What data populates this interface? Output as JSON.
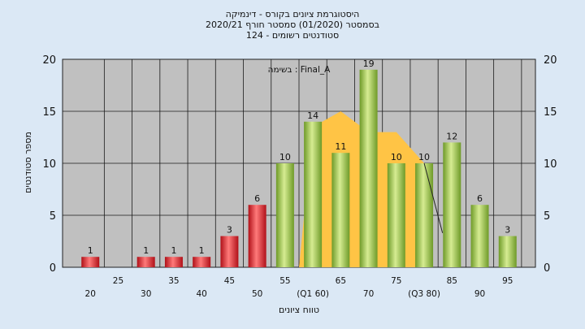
{
  "chart_data": {
    "type": "bar",
    "title_lines": [
      "היסטוגרמת ציונים בקורס - דינמיקה",
      "בסמסטר  (01/2020)  סמסטר חורף  2020/21",
      "סטודנטים רשומים - 124"
    ],
    "annotation": "בשימה : Final_A",
    "xlabel": "טווח ציונים",
    "ylabel": "מספר סטודנטים",
    "ylim": [
      0,
      20
    ],
    "yticks": [
      0,
      5,
      10,
      15,
      20
    ],
    "x_tick_labels": [
      {
        "x": 20,
        "label": "20",
        "row": 2
      },
      {
        "x": 25,
        "label": "25",
        "row": 1
      },
      {
        "x": 30,
        "label": "30",
        "row": 2
      },
      {
        "x": 35,
        "label": "35",
        "row": 1
      },
      {
        "x": 40,
        "label": "40",
        "row": 2
      },
      {
        "x": 45,
        "label": "45",
        "row": 1
      },
      {
        "x": 50,
        "label": "50",
        "row": 2
      },
      {
        "x": 55,
        "label": "55",
        "row": 1
      },
      {
        "x": 60,
        "label": "(Q1 60)",
        "row": 2
      },
      {
        "x": 65,
        "label": "65",
        "row": 1
      },
      {
        "x": 70,
        "label": "70",
        "row": 2
      },
      {
        "x": 75,
        "label": "75",
        "row": 1
      },
      {
        "x": 80,
        "label": "(Q3 80)",
        "row": 2
      },
      {
        "x": 85,
        "label": "85",
        "row": 1
      },
      {
        "x": 90,
        "label": "90",
        "row": 2
      },
      {
        "x": 95,
        "label": "95",
        "row": 1
      }
    ],
    "bars": [
      {
        "x": 20,
        "value": 1,
        "group": "fail"
      },
      {
        "x": 30,
        "value": 1,
        "group": "fail"
      },
      {
        "x": 35,
        "value": 1,
        "group": "fail"
      },
      {
        "x": 40,
        "value": 1,
        "group": "fail"
      },
      {
        "x": 45,
        "value": 3,
        "group": "fail"
      },
      {
        "x": 50,
        "value": 6,
        "group": "fail"
      },
      {
        "x": 55,
        "value": 10,
        "group": "pass"
      },
      {
        "x": 60,
        "value": 14,
        "group": "pass"
      },
      {
        "x": 65,
        "value": 11,
        "group": "pass"
      },
      {
        "x": 70,
        "value": 19,
        "group": "pass"
      },
      {
        "x": 75,
        "value": 10,
        "group": "pass"
      },
      {
        "x": 80,
        "value": 10,
        "group": "pass"
      },
      {
        "x": 85,
        "value": 12,
        "group": "pass"
      },
      {
        "x": 90,
        "value": 6,
        "group": "pass"
      },
      {
        "x": 95,
        "value": 3,
        "group": "pass"
      }
    ],
    "area": [
      {
        "x": 57.5,
        "y": 0
      },
      {
        "x": 60,
        "y": 13.5
      },
      {
        "x": 65,
        "y": 15
      },
      {
        "x": 70,
        "y": 13
      },
      {
        "x": 75,
        "y": 13
      },
      {
        "x": 80,
        "y": 10
      },
      {
        "x": 80,
        "y": 0
      }
    ],
    "drop_line": [
      {
        "x": 80,
        "y": 10
      },
      {
        "x": 83.3,
        "y": 3.3
      }
    ],
    "colors": {
      "background": "#dbe8f5",
      "plot_bg": "#c0c0c0",
      "grid": "#1a1a1a",
      "fail_light": "#ff7a7a",
      "fail_dark": "#b01018",
      "pass_light": "#d6ec92",
      "pass_dark": "#6e9a28",
      "area": "#ffc445"
    },
    "grid": true
  }
}
